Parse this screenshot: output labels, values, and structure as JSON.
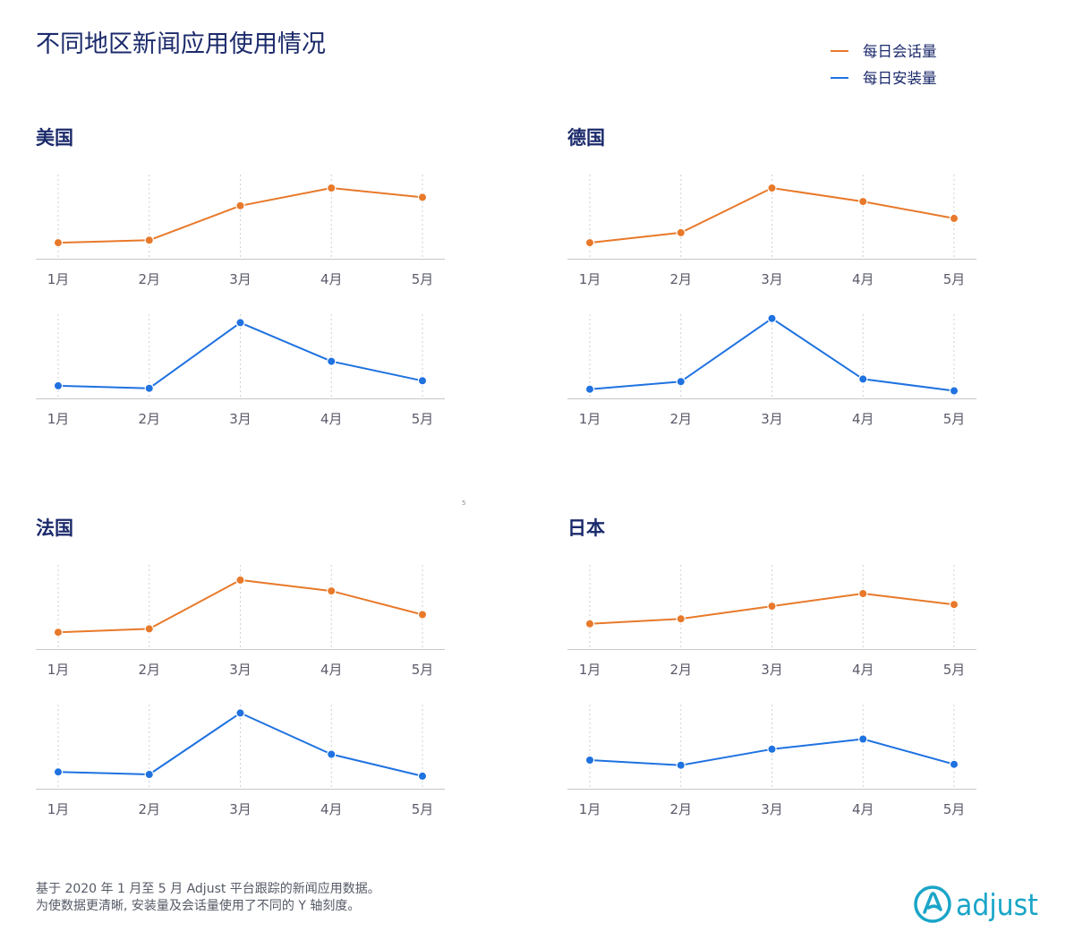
{
  "chart_data": {
    "type": "line",
    "title": "不同地区新闻应用使用情况",
    "categories": [
      "1月",
      "2月",
      "3月",
      "4月",
      "5月"
    ],
    "ylim": [
      0,
      100
    ],
    "y_axis_shown": false,
    "grid": {
      "x": true,
      "y": false
    },
    "legend_placement": "top-right",
    "series": [
      {
        "name": "每日会话量",
        "color": "#e8792a"
      },
      {
        "name": "每日安装量",
        "color": "#1f72e0"
      }
    ],
    "panels": [
      {
        "region": "美国",
        "series_values": [
          [
            19,
            22,
            63,
            84,
            73
          ],
          [
            15,
            12,
            90,
            44,
            21
          ]
        ]
      },
      {
        "region": "德国",
        "series_values": [
          [
            19,
            31,
            84,
            68,
            48
          ],
          [
            11,
            20,
            95,
            23,
            9
          ]
        ]
      },
      {
        "region": "法国",
        "series_values": [
          [
            20,
            24,
            82,
            69,
            41
          ],
          [
            20,
            17,
            90,
            41,
            15
          ]
        ]
      },
      {
        "region": "日本",
        "series_values": [
          [
            30,
            36,
            51,
            66,
            53
          ],
          [
            34,
            28,
            47,
            59,
            29
          ]
        ]
      }
    ]
  },
  "footnote": {
    "line1": "基于 2020 年 1 月至 5 月 Adjust 平台跟踪的新闻应用数据。",
    "line2": "为使数据更清晰, 安装量及会话量使用了不同的 Y 轴刻度。"
  },
  "page_marker": "5",
  "logo": {
    "text": "adjust",
    "icon": "adjust-logo-icon",
    "color": "#1aa5c8"
  },
  "colors": {
    "title": "#1b2a6b",
    "axis": "#c5c7cc",
    "gridline": "#cdd0d6",
    "tick_label": "#5a5a6a",
    "footnote": "#555a66",
    "background": "#ffffff"
  }
}
